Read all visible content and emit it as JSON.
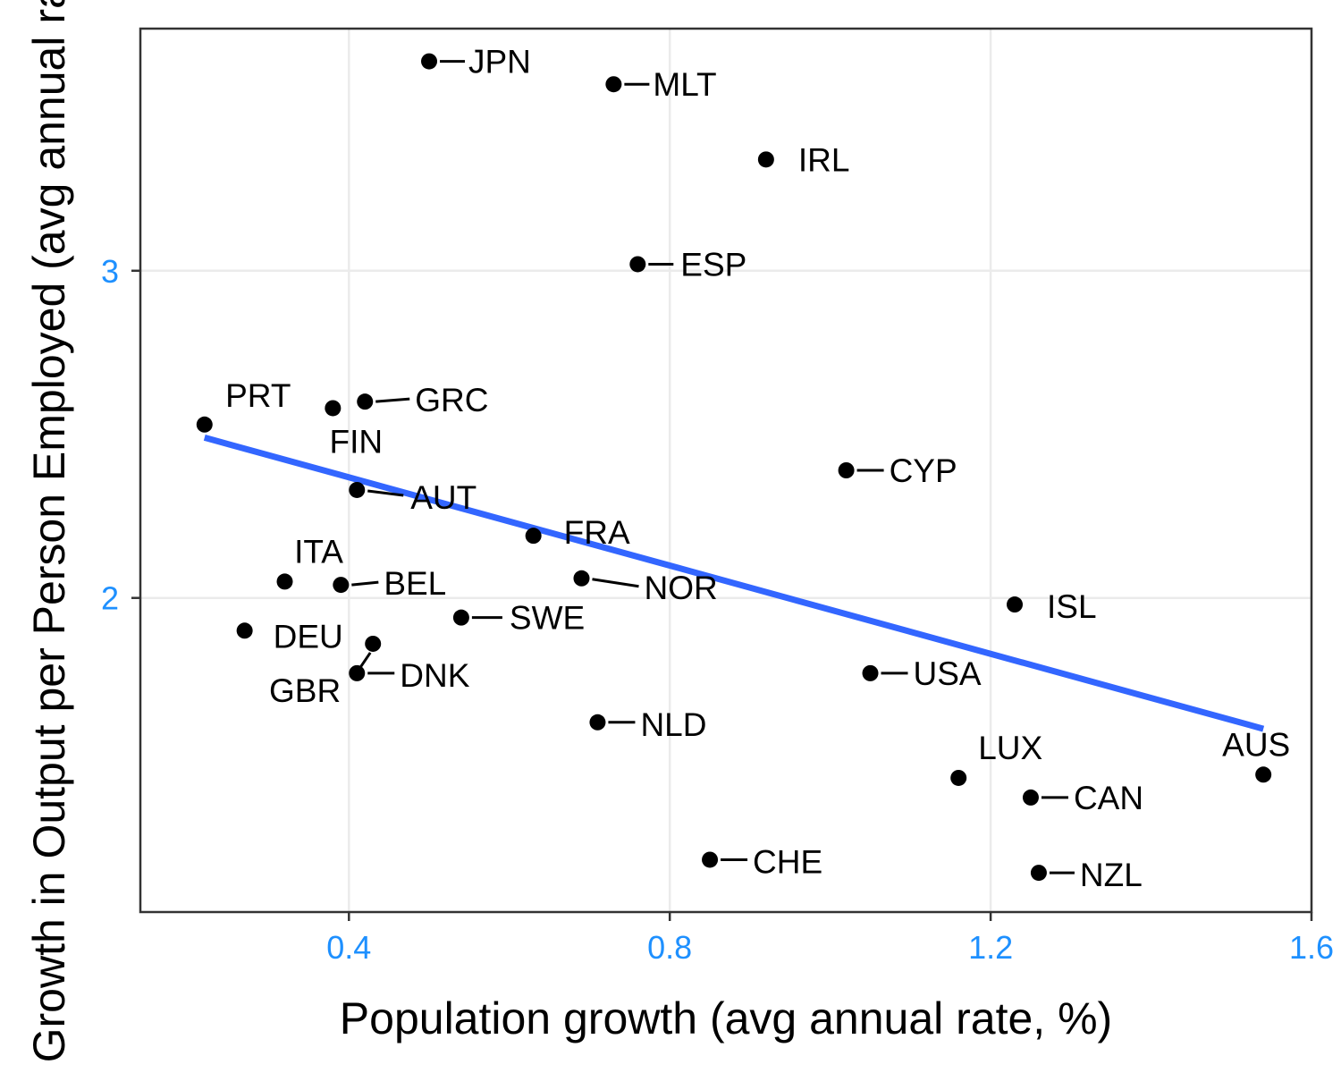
{
  "chart_data": {
    "type": "scatter",
    "title": "",
    "xlabel": "Population growth (avg annual rate, %)",
    "ylabel": "Growth in Output per Person Employed (avg annual rate, %)",
    "xlim": [
      0.14,
      1.6
    ],
    "ylim": [
      1.04,
      3.74
    ],
    "xticks": [
      0.4,
      0.8,
      1.2,
      1.6
    ],
    "xtick_labels": [
      "0.4",
      "0.8",
      "1.2",
      "1.6"
    ],
    "yticks": [
      2,
      3
    ],
    "ytick_labels": [
      "2",
      "3"
    ],
    "grid": true,
    "legend": "none",
    "points": [
      {
        "label": "JPN",
        "x": 0.5,
        "y": 3.64
      },
      {
        "label": "MLT",
        "x": 0.73,
        "y": 3.57
      },
      {
        "label": "IRL",
        "x": 0.92,
        "y": 3.34
      },
      {
        "label": "ESP",
        "x": 0.76,
        "y": 3.02
      },
      {
        "label": "PRT",
        "x": 0.22,
        "y": 2.53
      },
      {
        "label": "GRC",
        "x": 0.42,
        "y": 2.6
      },
      {
        "label": "FIN",
        "x": 0.38,
        "y": 2.58
      },
      {
        "label": "CYP",
        "x": 1.02,
        "y": 2.39
      },
      {
        "label": "AUT",
        "x": 0.41,
        "y": 2.33
      },
      {
        "label": "FRA",
        "x": 0.63,
        "y": 2.19
      },
      {
        "label": "ITA",
        "x": 0.32,
        "y": 2.05
      },
      {
        "label": "BEL",
        "x": 0.39,
        "y": 2.04
      },
      {
        "label": "NOR",
        "x": 0.69,
        "y": 2.06
      },
      {
        "label": "ISL",
        "x": 1.23,
        "y": 1.98
      },
      {
        "label": "SWE",
        "x": 0.54,
        "y": 1.94
      },
      {
        "label": "DEU",
        "x": 0.27,
        "y": 1.9
      },
      {
        "label": "GBR",
        "x": 0.43,
        "y": 1.86
      },
      {
        "label": "DNK",
        "x": 0.41,
        "y": 1.77
      },
      {
        "label": "USA",
        "x": 1.05,
        "y": 1.77
      },
      {
        "label": "NLD",
        "x": 0.71,
        "y": 1.62
      },
      {
        "label": "LUX",
        "x": 1.16,
        "y": 1.45
      },
      {
        "label": "AUS",
        "x": 1.54,
        "y": 1.46
      },
      {
        "label": "CAN",
        "x": 1.25,
        "y": 1.39
      },
      {
        "label": "CHE",
        "x": 0.85,
        "y": 1.2
      },
      {
        "label": "NZL",
        "x": 1.26,
        "y": 1.16
      }
    ],
    "trend_line": {
      "x": [
        0.22,
        1.54
      ],
      "y": [
        2.49,
        1.6
      ],
      "color": "#3366FF"
    },
    "colors": {
      "point": "#000000",
      "trend": "#3366FF",
      "tick_label": "#1E90FF",
      "grid": "#EBEBEB",
      "frame": "#333333"
    }
  }
}
